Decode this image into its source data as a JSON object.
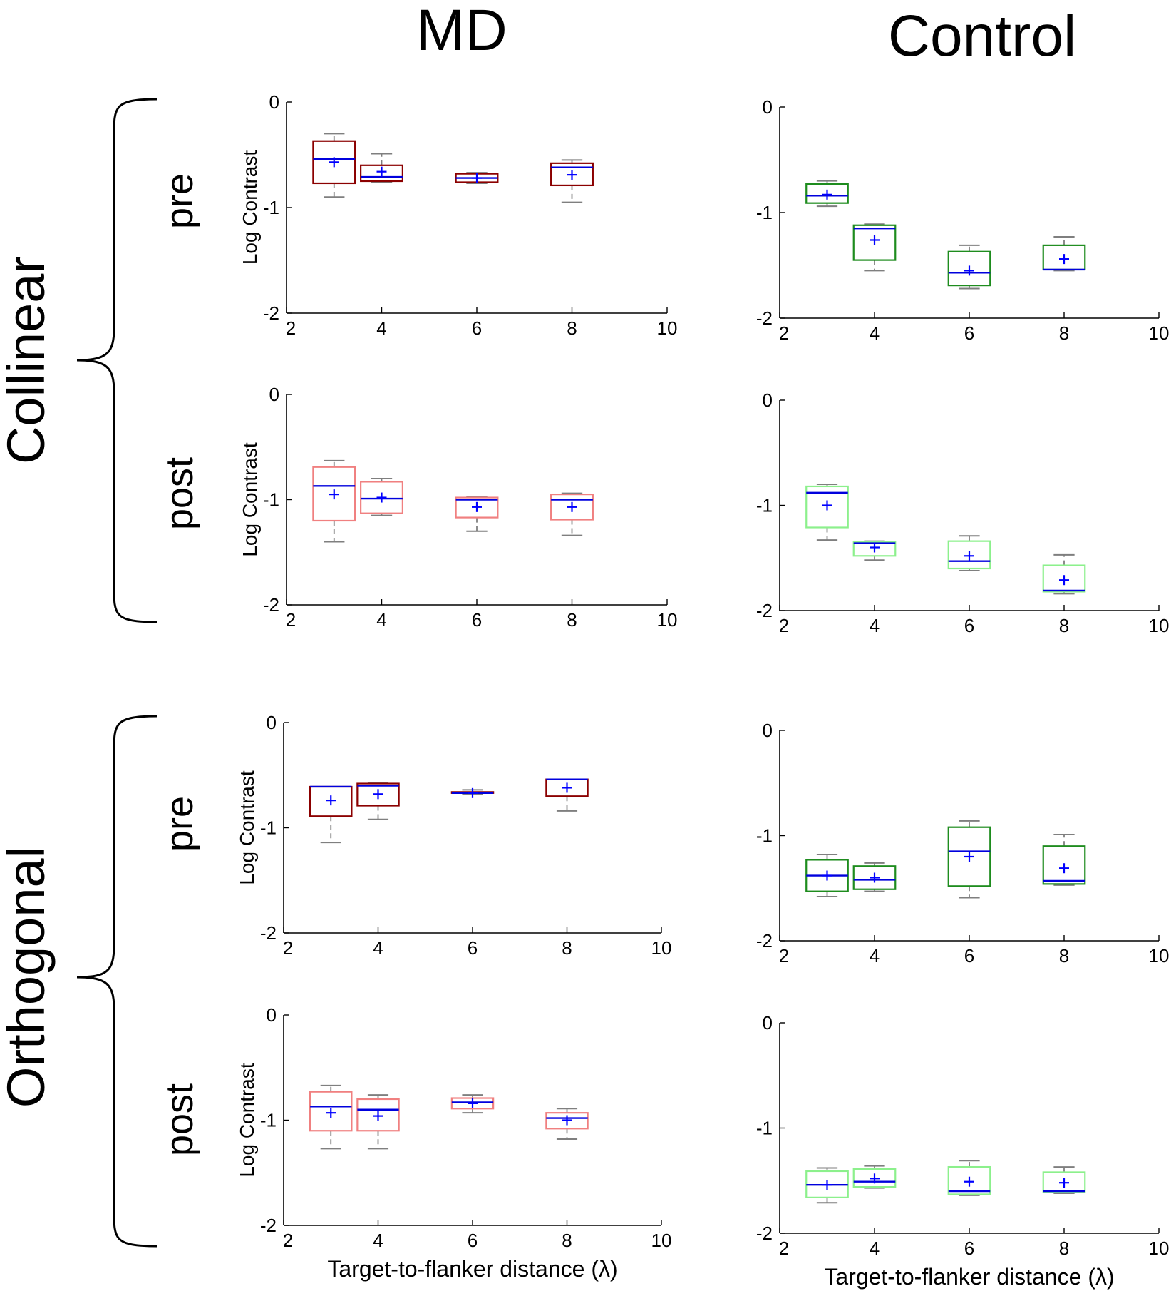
{
  "figure": {
    "column_titles": [
      "MD",
      "Control"
    ],
    "group_labels": [
      "Collinear",
      "Orthogonal"
    ],
    "row_labels": [
      "pre",
      "post",
      "pre",
      "post"
    ],
    "y_axis_label": "Log Contrast",
    "x_axis_label": "Target-to-flanker distance (λ)"
  },
  "colors": {
    "md_pre": "#8b0000",
    "md_post": "#f08080",
    "control_pre": "#1e8c1e",
    "control_post": "#8cf08c",
    "median": "#0000dd",
    "mean": "#0000ff",
    "whisker": "#7f7f7f",
    "axis": "#000000"
  },
  "chart_data": [
    {
      "type": "box",
      "group": "Collinear",
      "subject": "MD",
      "phase": "pre",
      "color_key": "md_pre",
      "xlim": [
        2,
        10
      ],
      "ylim": [
        -2,
        0
      ],
      "xticks": [
        2,
        4,
        6,
        8,
        10
      ],
      "yticks": [
        0,
        -1,
        -2
      ],
      "xlabel": "",
      "ylabel": "Log Contrast",
      "boxes": [
        {
          "x": 3,
          "wmin": -0.9,
          "q1": -0.77,
          "median": -0.54,
          "q3": -0.37,
          "wmax": -0.3,
          "mean": -0.57
        },
        {
          "x": 4,
          "wmin": -0.76,
          "q1": -0.75,
          "median": -0.71,
          "q3": -0.6,
          "wmax": -0.49,
          "mean": -0.66
        },
        {
          "x": 6,
          "wmin": -0.77,
          "q1": -0.76,
          "median": -0.72,
          "q3": -0.68,
          "wmax": -0.67,
          "mean": -0.72
        },
        {
          "x": 8,
          "wmin": -0.95,
          "q1": -0.79,
          "median": -0.62,
          "q3": -0.58,
          "wmax": -0.55,
          "mean": -0.69
        }
      ]
    },
    {
      "type": "box",
      "group": "Control",
      "subject": "Control",
      "phase": "pre",
      "color_key": "control_pre",
      "xlim": [
        2,
        10
      ],
      "ylim": [
        -2,
        0
      ],
      "xticks": [
        2,
        4,
        6,
        8,
        10
      ],
      "yticks": [
        0,
        -1,
        -2
      ],
      "xlabel": "",
      "ylabel": "",
      "boxes": [
        {
          "x": 3,
          "wmin": -0.94,
          "q1": -0.91,
          "median": -0.84,
          "q3": -0.73,
          "wmax": -0.7,
          "mean": -0.83
        },
        {
          "x": 4,
          "wmin": -1.55,
          "q1": -1.45,
          "median": -1.15,
          "q3": -1.12,
          "wmax": -1.11,
          "mean": -1.26
        },
        {
          "x": 6,
          "wmin": -1.72,
          "q1": -1.69,
          "median": -1.57,
          "q3": -1.37,
          "wmax": -1.31,
          "mean": -1.55
        },
        {
          "x": 8,
          "wmin": -1.55,
          "q1": -1.54,
          "median": -1.54,
          "q3": -1.31,
          "wmax": -1.23,
          "mean": -1.44
        }
      ]
    },
    {
      "type": "box",
      "group": "Collinear",
      "subject": "MD",
      "phase": "post",
      "color_key": "md_post",
      "xlim": [
        2,
        10
      ],
      "ylim": [
        -2,
        0
      ],
      "xticks": [
        2,
        4,
        6,
        8,
        10
      ],
      "yticks": [
        0,
        -1,
        -2
      ],
      "xlabel": "",
      "ylabel": "Log Contrast",
      "boxes": [
        {
          "x": 3,
          "wmin": -1.4,
          "q1": -1.2,
          "median": -0.87,
          "q3": -0.69,
          "wmax": -0.63,
          "mean": -0.95
        },
        {
          "x": 4,
          "wmin": -1.15,
          "q1": -1.13,
          "median": -0.99,
          "q3": -0.83,
          "wmax": -0.8,
          "mean": -0.98
        },
        {
          "x": 6,
          "wmin": -1.3,
          "q1": -1.17,
          "median": -1.0,
          "q3": -0.98,
          "wmax": -0.97,
          "mean": -1.07
        },
        {
          "x": 8,
          "wmin": -1.34,
          "q1": -1.19,
          "median": -1.0,
          "q3": -0.95,
          "wmax": -0.94,
          "mean": -1.07
        }
      ]
    },
    {
      "type": "box",
      "group": "Control",
      "subject": "Control",
      "phase": "post",
      "color_key": "control_post",
      "xlim": [
        2,
        10
      ],
      "ylim": [
        -2,
        0
      ],
      "xticks": [
        2,
        4,
        6,
        8,
        10
      ],
      "yticks": [
        0,
        -1,
        -2
      ],
      "xlabel": "",
      "ylabel": "",
      "boxes": [
        {
          "x": 3,
          "wmin": -1.33,
          "q1": -1.21,
          "median": -0.88,
          "q3": -0.82,
          "wmax": -0.8,
          "mean": -1.0
        },
        {
          "x": 4,
          "wmin": -1.52,
          "q1": -1.48,
          "median": -1.36,
          "q3": -1.35,
          "wmax": -1.34,
          "mean": -1.4
        },
        {
          "x": 6,
          "wmin": -1.62,
          "q1": -1.6,
          "median": -1.53,
          "q3": -1.34,
          "wmax": -1.29,
          "mean": -1.48
        },
        {
          "x": 8,
          "wmin": -1.84,
          "q1": -1.82,
          "median": -1.81,
          "q3": -1.57,
          "wmax": -1.47,
          "mean": -1.71
        }
      ]
    },
    {
      "type": "box",
      "group": "Orthogonal",
      "subject": "MD",
      "phase": "pre",
      "color_key": "md_pre",
      "xlim": [
        2,
        10
      ],
      "ylim": [
        -2,
        0
      ],
      "xticks": [
        2,
        4,
        6,
        8,
        10
      ],
      "yticks": [
        0,
        -1,
        -2
      ],
      "xlabel": "",
      "ylabel": "Log Contrast",
      "boxes": [
        {
          "x": 3,
          "wmin": -1.14,
          "q1": -0.89,
          "median": -0.61,
          "q3": -0.61,
          "wmax": -0.61,
          "mean": -0.74
        },
        {
          "x": 4,
          "wmin": -0.92,
          "q1": -0.79,
          "median": -0.6,
          "q3": -0.58,
          "wmax": -0.57,
          "mean": -0.68
        },
        {
          "x": 6,
          "wmin": -0.68,
          "q1": -0.67,
          "median": -0.67,
          "q3": -0.66,
          "wmax": -0.64,
          "mean": -0.67
        },
        {
          "x": 8,
          "wmin": -0.84,
          "q1": -0.7,
          "median": -0.54,
          "q3": -0.54,
          "wmax": -0.54,
          "mean": -0.62
        }
      ]
    },
    {
      "type": "box",
      "group": "Orthogonal",
      "subject": "Control",
      "phase": "pre",
      "color_key": "control_pre",
      "xlim": [
        2,
        10
      ],
      "ylim": [
        -2,
        0
      ],
      "xticks": [
        2,
        4,
        6,
        8,
        10
      ],
      "yticks": [
        0,
        -1,
        -2
      ],
      "xlabel": "",
      "ylabel": "",
      "boxes": [
        {
          "x": 3,
          "wmin": -1.58,
          "q1": -1.53,
          "median": -1.38,
          "q3": -1.23,
          "wmax": -1.18,
          "mean": -1.38
        },
        {
          "x": 4,
          "wmin": -1.53,
          "q1": -1.51,
          "median": -1.42,
          "q3": -1.29,
          "wmax": -1.26,
          "mean": -1.4
        },
        {
          "x": 6,
          "wmin": -1.59,
          "q1": -1.48,
          "median": -1.15,
          "q3": -0.92,
          "wmax": -0.86,
          "mean": -1.2
        },
        {
          "x": 8,
          "wmin": -1.47,
          "q1": -1.46,
          "median": -1.43,
          "q3": -1.1,
          "wmax": -0.99,
          "mean": -1.31
        }
      ]
    },
    {
      "type": "box",
      "group": "Orthogonal",
      "subject": "MD",
      "phase": "post",
      "color_key": "md_post",
      "xlim": [
        2,
        10
      ],
      "ylim": [
        -2,
        0
      ],
      "xticks": [
        2,
        4,
        6,
        8,
        10
      ],
      "yticks": [
        0,
        -1,
        -2
      ],
      "xlabel": "Target-to-flanker distance (λ)",
      "ylabel": "Log Contrast",
      "boxes": [
        {
          "x": 3,
          "wmin": -1.27,
          "q1": -1.1,
          "median": -0.87,
          "q3": -0.73,
          "wmax": -0.67,
          "mean": -0.93
        },
        {
          "x": 4,
          "wmin": -1.27,
          "q1": -1.1,
          "median": -0.9,
          "q3": -0.8,
          "wmax": -0.76,
          "mean": -0.96
        },
        {
          "x": 6,
          "wmin": -0.93,
          "q1": -0.89,
          "median": -0.83,
          "q3": -0.79,
          "wmax": -0.76,
          "mean": -0.84
        },
        {
          "x": 8,
          "wmin": -1.18,
          "q1": -1.08,
          "median": -0.98,
          "q3": -0.93,
          "wmax": -0.89,
          "mean": -1.0
        }
      ]
    },
    {
      "type": "box",
      "group": "Orthogonal",
      "subject": "Control",
      "phase": "post",
      "color_key": "control_post",
      "xlim": [
        2,
        10
      ],
      "ylim": [
        -2,
        0
      ],
      "xticks": [
        2,
        4,
        6,
        8,
        10
      ],
      "yticks": [
        0,
        -1,
        -2
      ],
      "xlabel": "Target-to-flanker distance (λ)",
      "ylabel": "",
      "boxes": [
        {
          "x": 3,
          "wmin": -1.71,
          "q1": -1.66,
          "median": -1.54,
          "q3": -1.41,
          "wmax": -1.38,
          "mean": -1.54
        },
        {
          "x": 4,
          "wmin": -1.57,
          "q1": -1.56,
          "median": -1.51,
          "q3": -1.39,
          "wmax": -1.36,
          "mean": -1.48
        },
        {
          "x": 6,
          "wmin": -1.64,
          "q1": -1.63,
          "median": -1.6,
          "q3": -1.37,
          "wmax": -1.31,
          "mean": -1.51
        },
        {
          "x": 8,
          "wmin": -1.62,
          "q1": -1.61,
          "median": -1.6,
          "q3": -1.42,
          "wmax": -1.37,
          "mean": -1.52
        }
      ]
    }
  ]
}
